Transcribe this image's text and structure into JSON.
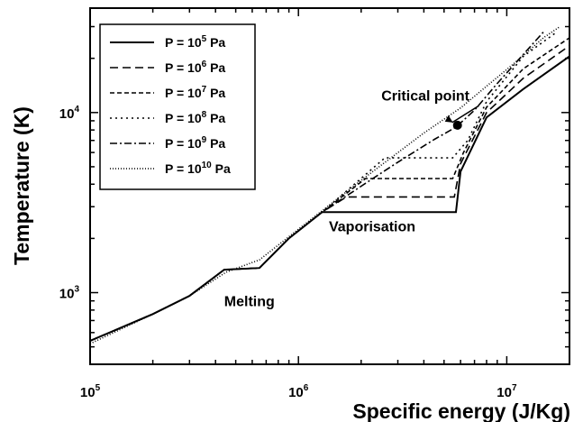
{
  "chart_data": {
    "type": "line",
    "xlabel": "Specific energy (J/Kg)",
    "ylabel": "Temperature (K)",
    "x_scale": "log",
    "y_scale": "log",
    "xlim": [
      100000,
      20000000
    ],
    "ylim": [
      400,
      38000
    ],
    "x_ticks": [
      {
        "value": 100000,
        "base": "10",
        "exp": "5"
      },
      {
        "value": 1000000,
        "base": "10",
        "exp": "6"
      },
      {
        "value": 10000000,
        "base": "10",
        "exp": "7"
      }
    ],
    "y_ticks": [
      {
        "value": 1000,
        "base": "10",
        "exp": "3"
      },
      {
        "value": 10000,
        "base": "10",
        "exp": "4"
      }
    ],
    "legend": {
      "placement": "top-left"
    },
    "series": [
      {
        "name": "P = 10^5 Pa",
        "label_prefix": "P =",
        "base": "10",
        "exp": "5",
        "unit": "Pa",
        "dash": "solid",
        "x": [
          100000,
          200000,
          300000,
          440000,
          650000,
          900000,
          1300000,
          1500000,
          3000000,
          5700000,
          6000000,
          8000000,
          12000000,
          20000000
        ],
        "y": [
          540,
          760,
          960,
          1340,
          1370,
          2000,
          2800,
          2800,
          2800,
          2800,
          4700,
          9400,
          13500,
          20500
        ]
      },
      {
        "name": "P = 10^6 Pa",
        "label_prefix": "P =",
        "base": "10",
        "exp": "6",
        "unit": "Pa",
        "dash": "longdash",
        "x": [
          100000,
          200000,
          300000,
          440000,
          650000,
          900000,
          1300000,
          1700000,
          3000000,
          5600000,
          6000000,
          8000000,
          12000000,
          20000000
        ],
        "y": [
          540,
          760,
          960,
          1340,
          1370,
          2000,
          2800,
          3400,
          3400,
          3400,
          5200,
          10000,
          15500,
          23500
        ]
      },
      {
        "name": "P = 10^7 Pa",
        "label_prefix": "P =",
        "base": "10",
        "exp": "7",
        "unit": "Pa",
        "dash": "dash",
        "x": [
          100000,
          200000,
          300000,
          440000,
          650000,
          900000,
          1300000,
          2100000,
          3500000,
          5500000,
          6200000,
          8000000,
          12000000,
          20000000
        ],
        "y": [
          540,
          760,
          960,
          1340,
          1370,
          2000,
          2800,
          4300,
          4300,
          4300,
          6000,
          10700,
          17500,
          26000
        ]
      },
      {
        "name": "P = 10^8 Pa",
        "label_prefix": "P =",
        "base": "10",
        "exp": "8",
        "unit": "Pa",
        "dash": "dot",
        "x": [
          100000,
          200000,
          300000,
          440000,
          650000,
          900000,
          1300000,
          2600000,
          4000000,
          5500000,
          6500000,
          8000000,
          12000000,
          17000000
        ],
        "y": [
          540,
          760,
          960,
          1340,
          1370,
          2000,
          2800,
          5600,
          5600,
          5600,
          7000,
          11500,
          20500,
          27500
        ]
      },
      {
        "name": "P = 10^9 Pa",
        "label_prefix": "P =",
        "base": "10",
        "exp": "9",
        "unit": "Pa",
        "dash": "dashdot",
        "x": [
          100000,
          200000,
          300000,
          440000,
          650000,
          900000,
          1300000,
          2000000,
          3000000,
          4500000,
          5700000,
          7000000,
          9000000,
          12000000,
          15000000
        ],
        "y": [
          540,
          760,
          960,
          1340,
          1370,
          2000,
          2800,
          3900,
          5300,
          7100,
          8300,
          10300,
          14500,
          21000,
          28000
        ]
      },
      {
        "name": "P = 10^10 Pa",
        "label_prefix": "P =",
        "base": "10",
        "exp": "10",
        "unit": "Pa",
        "dash": "fine",
        "x": [
          100000,
          200000,
          300000,
          450000,
          650000,
          1000000,
          2000000,
          4000000,
          6000000,
          8000000,
          11000000,
          15000000,
          18000000
        ],
        "y": [
          520,
          760,
          960,
          1300,
          1520,
          2250,
          4200,
          7700,
          10600,
          14000,
          19000,
          26000,
          30000
        ]
      }
    ],
    "annotations": [
      {
        "text": "Melting",
        "x": 440000,
        "y": 900
      },
      {
        "text": "Vaporisation",
        "x": 1400000,
        "y": 2350
      },
      {
        "text": "Critical point",
        "x": 2500000,
        "y": 12500
      }
    ],
    "critical_point": {
      "x": 5800000,
      "y": 8500,
      "label": "Critical point"
    }
  }
}
